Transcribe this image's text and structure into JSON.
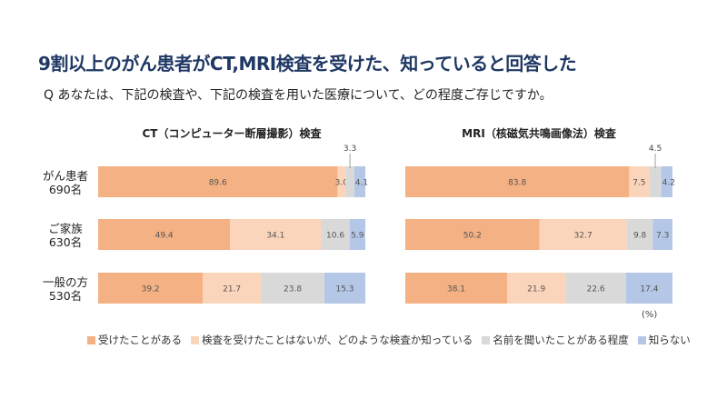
{
  "title": "9割以上のがん患者がCT,MRI検査を受けた、知っていると回答した",
  "question": "Q あなたは、下記の検査や、下記の検査を用いた医療について、どの程度ご存じですか。",
  "unit_label": "(%)",
  "row_labels": [
    {
      "line1": "がん患者",
      "line2": "690名"
    },
    {
      "line1": "ご家族",
      "line2": "630名"
    },
    {
      "line1": "一般の方",
      "line2": "530名"
    }
  ],
  "legend": [
    {
      "label": "受けたことがある",
      "color": "#f4b183"
    },
    {
      "label": "検査を受けたことはないが、どのような検査か知っている",
      "color": "#fbd5bb"
    },
    {
      "label": "名前を聞いたことがある程度",
      "color": "#d9d9d9"
    },
    {
      "label": "知らない",
      "color": "#b4c7e7"
    }
  ],
  "chart_data": [
    {
      "type": "bar",
      "orientation": "horizontal",
      "stacked": true,
      "title": "CT（コンピューター断層撮影）検査",
      "categories": [
        "がん患者 690名",
        "ご家族 630名",
        "一般の方 530名"
      ],
      "series": [
        {
          "name": "受けたことがある",
          "values": [
            89.6,
            49.4,
            39.2
          ]
        },
        {
          "name": "検査を受けたことはないが、どのような検査か知っている",
          "values": [
            3.0,
            34.1,
            21.7
          ]
        },
        {
          "name": "名前を聞いたことがある程度",
          "values": [
            3.3,
            10.6,
            23.8
          ]
        },
        {
          "name": "知らない",
          "values": [
            4.1,
            5.9,
            15.3
          ]
        }
      ],
      "xlim": [
        0,
        100
      ]
    },
    {
      "type": "bar",
      "orientation": "horizontal",
      "stacked": true,
      "title": "MRI（核磁気共鳴画像法）検査",
      "categories": [
        "がん患者 690名",
        "ご家族 630名",
        "一般の方 530名"
      ],
      "series": [
        {
          "name": "受けたことがある",
          "values": [
            83.8,
            50.2,
            38.1
          ]
        },
        {
          "name": "検査を受けたことはないが、どのような検査か知っている",
          "values": [
            7.5,
            32.7,
            21.9
          ]
        },
        {
          "name": "名前を聞いたことがある程度",
          "values": [
            4.5,
            9.8,
            22.6
          ]
        },
        {
          "name": "知らない",
          "values": [
            4.2,
            7.3,
            17.4
          ]
        }
      ],
      "xlim": [
        0,
        100
      ]
    }
  ]
}
